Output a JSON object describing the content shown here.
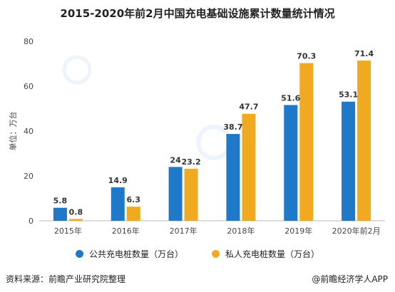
{
  "chart_data": {
    "type": "bar",
    "title": "2015-2020年前2月中国充电基础设施累计数量统计情况",
    "ylabel": "单位：万台",
    "xlabel": "",
    "categories": [
      "2015年",
      "2016年",
      "2017年",
      "2018年",
      "2019年",
      "2020年前2月"
    ],
    "ylim": [
      0,
      80
    ],
    "yticks": [
      0,
      20,
      40,
      60,
      80
    ],
    "grid": false,
    "legend_position": "bottom",
    "series": [
      {
        "name": "公共充电桩数量（万台）",
        "values": [
          5.8,
          14.9,
          24,
          38.7,
          51.6,
          53.1
        ],
        "labels": [
          "5.8",
          "14.9",
          "24",
          "38.7",
          "51.6",
          "53.1"
        ],
        "color": "#1f78c8"
      },
      {
        "name": "私人充电桩数量（万台）",
        "values": [
          0.8,
          6.3,
          23.2,
          47.7,
          70.3,
          71.4
        ],
        "labels": [
          "0.8",
          "6.3",
          "23.2",
          "47.7",
          "70.3",
          "71.4"
        ],
        "color": "#f0aa22"
      }
    ]
  },
  "footer": {
    "source": "资料来源：前瞻产业研究院整理",
    "brand": "@前瞻经济学人APP"
  }
}
